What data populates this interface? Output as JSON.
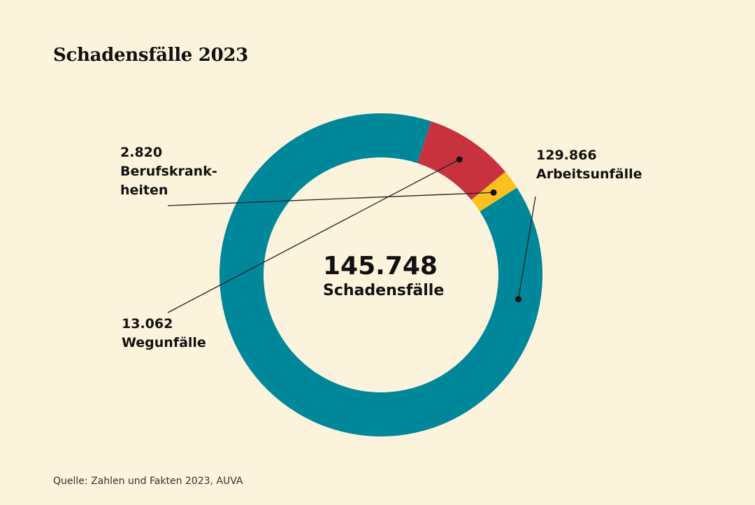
{
  "title": "Schadensfälle 2023",
  "source": "Quelle: Zahlen und Fakten 2023, AUVA",
  "chart_data": {
    "type": "pie",
    "title": "Schadensfälle 2023",
    "center": {
      "value": "145.748",
      "label": "Schadensfälle"
    },
    "total": 145748,
    "slices": [
      {
        "value": 129866,
        "value_label": "129.866",
        "label_lines": [
          "Arbeitsunfälle"
        ],
        "color": "#00879a"
      },
      {
        "value": 13062,
        "value_label": "13.062",
        "label_lines": [
          "Wegunfälle"
        ],
        "color": "#c8323f"
      },
      {
        "value": 2820,
        "value_label": "2.820",
        "label_lines": [
          "Berufskrank-",
          "heiten"
        ],
        "color": "#fbbf1e"
      }
    ]
  }
}
